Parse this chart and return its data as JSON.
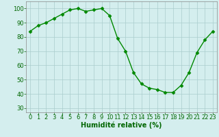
{
  "x": [
    0,
    1,
    2,
    3,
    4,
    5,
    6,
    7,
    8,
    9,
    10,
    11,
    12,
    13,
    14,
    15,
    16,
    17,
    18,
    19,
    20,
    21,
    22,
    23
  ],
  "y": [
    84,
    88,
    90,
    93,
    96,
    99,
    100,
    98,
    99,
    100,
    95,
    79,
    70,
    55,
    47,
    44,
    43,
    41,
    41,
    46,
    55,
    69,
    78,
    84
  ],
  "xlabel": "Humidité relative (%)",
  "xlim": [
    -0.5,
    23.5
  ],
  "ylim": [
    27,
    105
  ],
  "yticks": [
    30,
    40,
    50,
    60,
    70,
    80,
    90,
    100
  ],
  "xticks": [
    0,
    1,
    2,
    3,
    4,
    5,
    6,
    7,
    8,
    9,
    10,
    11,
    12,
    13,
    14,
    15,
    16,
    17,
    18,
    19,
    20,
    21,
    22,
    23
  ],
  "line_color": "#008800",
  "marker": "D",
  "marker_size": 2.5,
  "bg_color": "#d4eeee",
  "grid_color": "#aacccc",
  "text_color": "#006600",
  "tick_fontsize": 6.0,
  "xlabel_fontsize": 7.0
}
